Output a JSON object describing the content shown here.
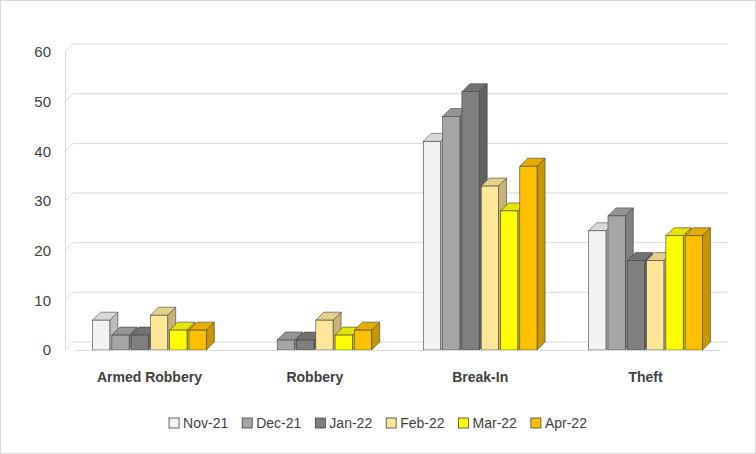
{
  "chart_data": {
    "type": "bar",
    "categories": [
      "Armed Robbery",
      "Robbery",
      "Break-In",
      "Theft"
    ],
    "series": [
      {
        "name": "Nov-21",
        "color": "#f2f2f2",
        "values": [
          6,
          0,
          42,
          24
        ]
      },
      {
        "name": "Dec-21",
        "color": "#a6a6a6",
        "values": [
          3,
          2,
          47,
          27
        ]
      },
      {
        "name": "Jan-22",
        "color": "#7f7f7f",
        "values": [
          3,
          2,
          52,
          18
        ]
      },
      {
        "name": "Feb-22",
        "color": "#ffe699",
        "values": [
          7,
          6,
          33,
          18
        ]
      },
      {
        "name": "Mar-22",
        "color": "#ffff00",
        "values": [
          4,
          3,
          28,
          23
        ]
      },
      {
        "name": "Apr-22",
        "color": "#ffc000",
        "values": [
          4,
          4,
          37,
          23
        ]
      }
    ],
    "ylim": [
      0,
      60
    ],
    "yticks": [
      0,
      10,
      20,
      30,
      40,
      50,
      60
    ],
    "grid": true,
    "legend": "bottom"
  }
}
